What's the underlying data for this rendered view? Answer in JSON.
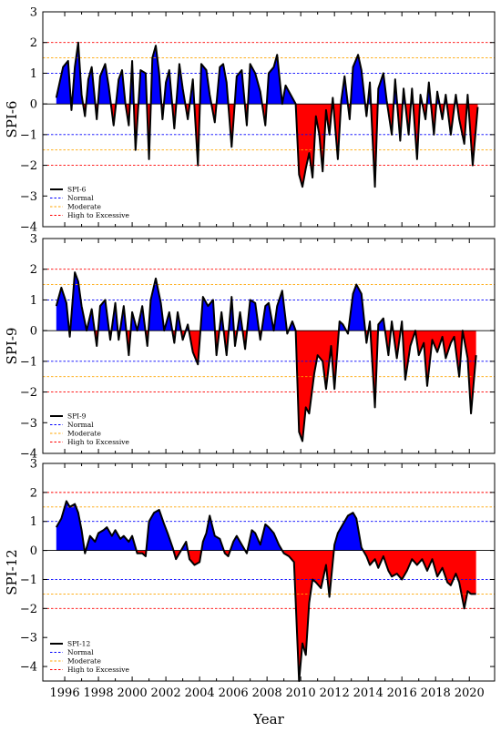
{
  "chart_data": [
    {
      "type": "area",
      "ylabel": "SPI-6",
      "ylim": [
        -4,
        3
      ],
      "yticks": [
        -4,
        -3,
        -2,
        -1,
        0,
        1,
        2,
        3
      ],
      "thresholds": [
        -2,
        -1.5,
        -1,
        1,
        1.5,
        2
      ],
      "legend": {
        "placement": "bottom-left",
        "entries": [
          "SPI-6",
          "Normal",
          "Moderate",
          "High to Excessive"
        ]
      },
      "series": [
        {
          "name": "SPI-6",
          "x": [
            1995.5,
            1995.9,
            1996.2,
            1996.4,
            1996.6,
            1996.8,
            1997.0,
            1997.2,
            1997.4,
            1997.6,
            1997.9,
            1998.1,
            1998.4,
            1998.6,
            1998.9,
            1999.2,
            1999.4,
            1999.6,
            1999.8,
            2000.0,
            2000.2,
            2000.5,
            2000.8,
            2001.0,
            2001.2,
            2001.4,
            2001.6,
            2001.8,
            2002.0,
            2002.2,
            2002.5,
            2002.8,
            2003.0,
            2003.3,
            2003.6,
            2003.9,
            2004.1,
            2004.4,
            2004.6,
            2004.9,
            2005.2,
            2005.4,
            2005.6,
            2005.9,
            2006.2,
            2006.5,
            2006.8,
            2007.0,
            2007.3,
            2007.6,
            2007.9,
            2008.1,
            2008.4,
            2008.6,
            2008.9,
            2009.1,
            2009.4,
            2009.7,
            2009.9,
            2010.1,
            2010.3,
            2010.5,
            2010.7,
            2010.9,
            2011.1,
            2011.3,
            2011.5,
            2011.7,
            2011.9,
            2012.2,
            2012.4,
            2012.6,
            2012.9,
            2013.1,
            2013.4,
            2013.6,
            2013.9,
            2014.1,
            2014.4,
            2014.6,
            2014.9,
            2015.1,
            2015.4,
            2015.6,
            2015.9,
            2016.1,
            2016.4,
            2016.6,
            2016.9,
            2017.1,
            2017.4,
            2017.6,
            2017.9,
            2018.1,
            2018.4,
            2018.6,
            2018.9,
            2019.2,
            2019.4,
            2019.7,
            2019.9,
            2020.2,
            2020.5
          ],
          "values": [
            0.2,
            1.2,
            1.4,
            -0.2,
            1.2,
            2.0,
            0.3,
            -0.4,
            0.8,
            1.2,
            -0.5,
            0.9,
            1.3,
            0.6,
            -0.7,
            0.8,
            1.1,
            0.0,
            -0.7,
            1.4,
            -1.5,
            1.1,
            1.0,
            -1.8,
            1.5,
            1.9,
            1.0,
            -0.5,
            0.7,
            1.1,
            -0.8,
            1.3,
            0.5,
            -0.5,
            0.8,
            -2.0,
            1.3,
            1.1,
            0.3,
            -0.6,
            1.2,
            1.3,
            0.7,
            -1.4,
            0.9,
            1.1,
            -0.7,
            1.3,
            1.0,
            0.4,
            -0.7,
            1.0,
            1.2,
            1.6,
            0.0,
            0.6,
            0.3,
            0.0,
            -2.3,
            -2.7,
            -2.1,
            -1.6,
            -2.4,
            -0.4,
            -1.0,
            -2.2,
            -0.2,
            -1.0,
            0.2,
            -1.8,
            0.1,
            0.9,
            -0.5,
            1.2,
            1.6,
            1.1,
            -0.4,
            0.7,
            -2.7,
            0.5,
            1.0,
            0.1,
            -1.0,
            0.8,
            -1.2,
            0.5,
            -1.0,
            0.5,
            -1.8,
            0.3,
            -0.5,
            0.7,
            -1.0,
            0.4,
            -0.5,
            0.3,
            -1.0,
            0.3,
            -0.5,
            -1.3,
            0.3,
            -2.0,
            -0.1
          ]
        }
      ]
    },
    {
      "type": "area",
      "ylabel": "SPI-9",
      "ylim": [
        -4,
        3
      ],
      "yticks": [
        -4,
        -3,
        -2,
        -1,
        0,
        1,
        2,
        3
      ],
      "thresholds": [
        -2,
        -1.5,
        -1,
        1,
        1.5,
        2
      ],
      "legend": {
        "placement": "bottom-left",
        "entries": [
          "SPI-9",
          "Normal",
          "Moderate",
          "High to Excessive"
        ]
      },
      "series": [
        {
          "name": "SPI-9",
          "x": [
            1995.5,
            1995.8,
            1996.1,
            1996.3,
            1996.6,
            1996.8,
            1997.0,
            1997.3,
            1997.6,
            1997.9,
            1998.1,
            1998.4,
            1998.7,
            1999.0,
            1999.2,
            1999.5,
            1999.8,
            2000.0,
            2000.3,
            2000.6,
            2000.9,
            2001.1,
            2001.4,
            2001.7,
            2001.9,
            2002.2,
            2002.5,
            2002.7,
            2003.0,
            2003.3,
            2003.6,
            2003.9,
            2004.2,
            2004.5,
            2004.8,
            2005.0,
            2005.3,
            2005.6,
            2005.9,
            2006.1,
            2006.4,
            2006.7,
            2007.0,
            2007.3,
            2007.6,
            2007.9,
            2008.1,
            2008.4,
            2008.6,
            2008.9,
            2009.2,
            2009.5,
            2009.7,
            2009.9,
            2010.1,
            2010.3,
            2010.5,
            2010.8,
            2011.0,
            2011.3,
            2011.5,
            2011.8,
            2012.0,
            2012.3,
            2012.5,
            2012.8,
            2013.1,
            2013.3,
            2013.6,
            2013.9,
            2014.1,
            2014.4,
            2014.6,
            2014.9,
            2015.2,
            2015.4,
            2015.7,
            2016.0,
            2016.2,
            2016.5,
            2016.8,
            2017.0,
            2017.3,
            2017.5,
            2017.8,
            2018.1,
            2018.4,
            2018.6,
            2018.9,
            2019.1,
            2019.4,
            2019.6,
            2019.9,
            2020.1,
            2020.4
          ],
          "values": [
            0.8,
            1.4,
            0.9,
            -0.2,
            1.9,
            1.6,
            0.8,
            0.0,
            0.7,
            -0.5,
            0.8,
            1.0,
            -0.3,
            0.9,
            -0.3,
            0.8,
            -0.8,
            0.6,
            0.0,
            0.8,
            -0.5,
            1.0,
            1.7,
            0.9,
            0.0,
            0.6,
            -0.4,
            0.6,
            -0.3,
            0.2,
            -0.7,
            -1.1,
            1.1,
            0.8,
            1.0,
            -0.8,
            0.6,
            -0.8,
            1.1,
            -0.5,
            0.6,
            -0.6,
            1.0,
            0.9,
            -0.3,
            0.8,
            0.9,
            0.0,
            0.8,
            1.3,
            -0.1,
            0.3,
            0.0,
            -3.3,
            -3.6,
            -2.5,
            -2.7,
            -1.4,
            -0.8,
            -1.0,
            -1.9,
            -0.5,
            -1.9,
            0.3,
            0.2,
            -0.1,
            1.2,
            1.5,
            1.2,
            -0.4,
            0.3,
            -2.5,
            0.2,
            0.4,
            -0.8,
            0.3,
            -0.9,
            0.3,
            -1.6,
            -0.5,
            0.0,
            -0.8,
            -0.4,
            -1.8,
            -0.3,
            -0.7,
            -0.2,
            -0.9,
            -0.4,
            -0.2,
            -1.5,
            0.0,
            -0.9,
            -2.7,
            -0.8
          ]
        }
      ]
    },
    {
      "type": "area",
      "ylabel": "SPI-12",
      "ylim": [
        -4.5,
        3
      ],
      "yticks": [
        -4,
        -3,
        -2,
        -1,
        0,
        1,
        2,
        3
      ],
      "thresholds": [
        -2,
        -1.5,
        -1,
        1,
        1.5,
        2
      ],
      "legend": {
        "placement": "bottom-left",
        "entries": [
          "SPI-12",
          "Normal",
          "Moderate",
          "High to Excessive"
        ]
      },
      "xticks": [
        "1996",
        "1998",
        "2000",
        "2002",
        "2004",
        "2006",
        "2008",
        "2010",
        "2012",
        "2014",
        "2016",
        "2018",
        "2020"
      ],
      "xlabel": "Year",
      "series": [
        {
          "name": "SPI-12",
          "x": [
            1995.5,
            1995.8,
            1996.1,
            1996.3,
            1996.6,
            1996.8,
            1997.0,
            1997.2,
            1997.5,
            1997.8,
            1998.0,
            1998.3,
            1998.5,
            1998.8,
            1999.0,
            1999.3,
            1999.5,
            1999.8,
            2000.0,
            2000.3,
            2000.6,
            2000.8,
            2001.0,
            2001.3,
            2001.6,
            2001.9,
            2002.1,
            2002.4,
            2002.6,
            2002.9,
            2003.2,
            2003.4,
            2003.7,
            2004.0,
            2004.2,
            2004.4,
            2004.6,
            2004.9,
            2005.2,
            2005.5,
            2005.7,
            2006.0,
            2006.2,
            2006.5,
            2006.8,
            2007.1,
            2007.3,
            2007.6,
            2007.9,
            2008.1,
            2008.4,
            2008.7,
            2009.0,
            2009.3,
            2009.6,
            2009.9,
            2010.1,
            2010.3,
            2010.5,
            2010.7,
            2010.9,
            2011.2,
            2011.5,
            2011.7,
            2012.0,
            2012.2,
            2012.5,
            2012.8,
            2013.1,
            2013.3,
            2013.6,
            2013.9,
            2014.1,
            2014.4,
            2014.6,
            2014.9,
            2015.2,
            2015.4,
            2015.7,
            2016.0,
            2016.3,
            2016.6,
            2016.9,
            2017.2,
            2017.5,
            2017.8,
            2018.1,
            2018.4,
            2018.7,
            2018.9,
            2019.2,
            2019.4,
            2019.7,
            2019.9,
            2020.1,
            2020.4
          ],
          "values": [
            0.8,
            1.1,
            1.7,
            1.5,
            1.6,
            1.3,
            0.7,
            -0.1,
            0.5,
            0.3,
            0.6,
            0.7,
            0.8,
            0.5,
            0.7,
            0.4,
            0.5,
            0.3,
            0.5,
            -0.1,
            -0.1,
            -0.2,
            1.0,
            1.3,
            1.4,
            0.9,
            0.6,
            0.1,
            -0.3,
            0.0,
            0.3,
            -0.3,
            -0.5,
            -0.4,
            0.3,
            0.6,
            1.2,
            0.5,
            0.4,
            -0.1,
            -0.2,
            0.3,
            0.5,
            0.2,
            -0.1,
            0.7,
            0.6,
            0.2,
            0.9,
            0.8,
            0.6,
            0.2,
            -0.1,
            -0.2,
            -0.4,
            -4.5,
            -3.2,
            -3.6,
            -1.8,
            -1.0,
            -1.1,
            -1.3,
            -0.5,
            -1.6,
            0.2,
            0.6,
            0.9,
            1.2,
            1.3,
            1.1,
            0.1,
            -0.2,
            -0.5,
            -0.3,
            -0.6,
            -0.2,
            -0.7,
            -0.9,
            -0.8,
            -1.0,
            -0.7,
            -0.3,
            -0.5,
            -0.3,
            -0.7,
            -0.3,
            -0.9,
            -0.6,
            -1.1,
            -1.2,
            -0.8,
            -1.1,
            -2.0,
            -1.4,
            -1.5,
            -1.5
          ]
        }
      ]
    }
  ],
  "colors": {
    "positive_fill": "#0000ff",
    "negative_fill": "#ff0000",
    "line": "#000000",
    "normal": "#0000ff",
    "moderate": "#ffa500",
    "high_to_excessive": "#ff0000"
  }
}
